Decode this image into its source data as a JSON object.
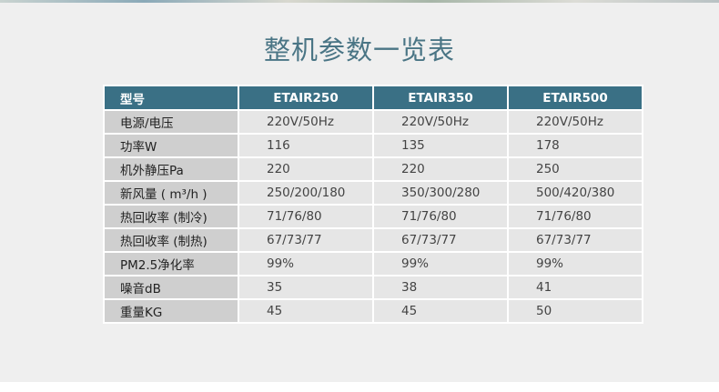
{
  "title": "整机参数一览表",
  "table": {
    "headers": [
      "型号",
      "ETAIR250",
      "ETAIR350",
      "ETAIR500"
    ],
    "rows": [
      [
        "电源/电压",
        "220V/50Hz",
        "220V/50Hz",
        "220V/50Hz"
      ],
      [
        "功率W",
        "116",
        "135",
        "178"
      ],
      [
        "机外静压Pa",
        "220",
        "220",
        "250"
      ],
      [
        "新风量 ( m³/h )",
        "250/200/180",
        "350/300/280",
        "500/420/380"
      ],
      [
        "热回收率 (制冷)",
        "71/76/80",
        "71/76/80",
        "71/76/80"
      ],
      [
        "热回收率 (制热)",
        "67/73/77",
        "67/73/77",
        "67/73/77"
      ],
      [
        "PM2.5净化率",
        "99%",
        "99%",
        "99%"
      ],
      [
        "噪音dB",
        "35",
        "38",
        "41"
      ],
      [
        "重量KG",
        "45",
        "45",
        "50"
      ]
    ]
  },
  "colors": {
    "header": "#3a7085",
    "label_column": "#cfcfcf",
    "cells": "#e6e6e6",
    "title": "#4a7585"
  }
}
